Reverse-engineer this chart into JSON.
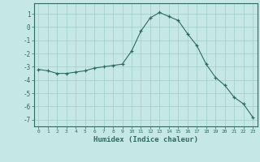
{
  "x": [
    0,
    1,
    2,
    3,
    4,
    5,
    6,
    7,
    8,
    9,
    10,
    11,
    12,
    13,
    14,
    15,
    16,
    17,
    18,
    19,
    20,
    21,
    22,
    23
  ],
  "y": [
    -3.2,
    -3.3,
    -3.5,
    -3.5,
    -3.4,
    -3.3,
    -3.1,
    -3.0,
    -2.9,
    -2.8,
    -1.8,
    -0.3,
    0.7,
    1.1,
    0.8,
    0.5,
    -0.5,
    -1.4,
    -2.8,
    -3.8,
    -4.4,
    -5.3,
    -5.8,
    -6.8
  ],
  "xlabel": "Humidex (Indice chaleur)",
  "xlim": [
    -0.5,
    23.5
  ],
  "ylim": [
    -7.5,
    1.8
  ],
  "yticks": [
    1,
    0,
    -1,
    -2,
    -3,
    -4,
    -5,
    -6,
    -7
  ],
  "xticks": [
    0,
    1,
    2,
    3,
    4,
    5,
    6,
    7,
    8,
    9,
    10,
    11,
    12,
    13,
    14,
    15,
    16,
    17,
    18,
    19,
    20,
    21,
    22,
    23
  ],
  "line_color": "#2d6b5e",
  "marker_color": "#2d6b5e",
  "bg_color": "#c5e8e6",
  "grid_color": "#9fcecb",
  "label_color": "#2d6b5e",
  "tick_color": "#2d6b5e",
  "spine_color": "#2d6b5e"
}
